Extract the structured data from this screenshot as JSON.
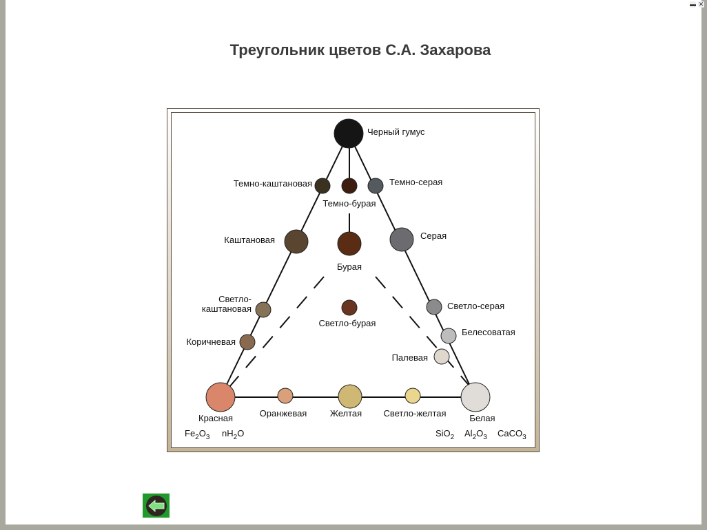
{
  "title": "Треугольник цветов С.А. Захарова",
  "window_controls": {
    "minimize_icon": "minimize-icon",
    "close_icon": "close-icon"
  },
  "back_button": {
    "icon": "arrow-left-icon",
    "color": "#1f9a2b"
  },
  "nodes": [
    {
      "label": "Черный гумус",
      "color": "#151515",
      "size": "large"
    },
    {
      "label": "Темно-каштановая",
      "color": "#3a3120",
      "size": "small"
    },
    {
      "label": "Темно-бурая",
      "color": "#3d1d10",
      "size": "small"
    },
    {
      "label": "Темно-серая",
      "color": "#555a5e",
      "size": "small"
    },
    {
      "label": "Каштановая",
      "color": "#5a4530",
      "size": "medium"
    },
    {
      "label": "Бурая",
      "color": "#5a2c14",
      "size": "medium"
    },
    {
      "label": "Серая",
      "color": "#6c6c70",
      "size": "medium"
    },
    {
      "label": "Светло-\nкаштановая",
      "color": "#857257",
      "size": "small"
    },
    {
      "label": "Светло-бурая",
      "color": "#6a3520",
      "size": "small"
    },
    {
      "label": "Светло-серая",
      "color": "#8b8b8d",
      "size": "small"
    },
    {
      "label": "Коричневая",
      "color": "#8a6a4e",
      "size": "small"
    },
    {
      "label": "Белесоватая",
      "color": "#bdbdbd",
      "size": "small"
    },
    {
      "label": "Палевая",
      "color": "#e0d8cd",
      "size": "small"
    },
    {
      "label": "Красная",
      "color": "#d9866a",
      "size": "large"
    },
    {
      "label": "Оранжевая",
      "color": "#d9a07a",
      "size": "small"
    },
    {
      "label": "Желтая",
      "color": "#cfb874",
      "size": "medium"
    },
    {
      "label": "Светло-желтая",
      "color": "#ead68c",
      "size": "small"
    },
    {
      "label": "Белая",
      "color": "#e0ddd8",
      "size": "large"
    }
  ],
  "formulas": {
    "left": [
      {
        "base": "Fe",
        "sub": "2",
        "rest": "O",
        "sub2": "3"
      },
      {
        "base": "nH",
        "sub": "2",
        "rest": "O",
        "sub2": ""
      }
    ],
    "right": [
      {
        "base": "SiO",
        "sub": "2",
        "rest": "",
        "sub2": ""
      },
      {
        "base": "Al",
        "sub": "2",
        "rest": "O",
        "sub2": "3"
      },
      {
        "base": "CaCO",
        "sub": "3",
        "rest": "",
        "sub2": ""
      }
    ]
  }
}
